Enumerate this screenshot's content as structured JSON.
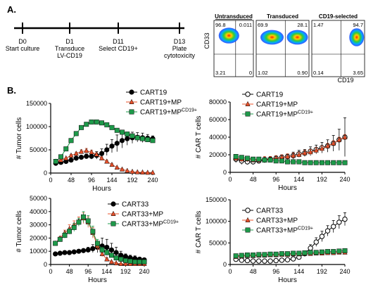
{
  "panel_a": {
    "label": "A.",
    "timeline": [
      {
        "day": "D0",
        "desc": [
          "Start culture"
        ]
      },
      {
        "day": "D1",
        "desc": [
          "Transduce",
          "LV-CD19"
        ]
      },
      {
        "day": "D11",
        "desc": [
          "Select CD19+"
        ]
      },
      {
        "day": "D13",
        "desc": [
          "Plate",
          "cytotoxicity"
        ]
      }
    ],
    "flow": {
      "ylabel": "CD33",
      "xlabel": "CD19",
      "plots": [
        {
          "title": "Untransduced",
          "q": [
            "96.8",
            "0.011",
            "3.21",
            "0"
          ]
        },
        {
          "title": "Transduced",
          "q": [
            "69.9",
            "28.1",
            "1.02",
            "0.90"
          ]
        },
        {
          "title": "CD19-selected",
          "q": [
            "1.47",
            "94.7",
            "0.14",
            "3.65"
          ]
        }
      ]
    }
  },
  "panel_b": {
    "label": "B."
  },
  "colors": {
    "black": "#000000",
    "red": "#e8502a",
    "green": "#1e9a4a",
    "grey": "#888888"
  },
  "chart_data": [
    {
      "type": "line",
      "ylabel": "# Tumor cells",
      "xlabel": "Hours",
      "ylim": [
        0,
        150000
      ],
      "yticks": [
        "0",
        "50000",
        "100000",
        "150000"
      ],
      "xlim": [
        0,
        240
      ],
      "xticks": [
        "0",
        "48",
        "96",
        "144",
        "192",
        "240"
      ],
      "x": [
        12,
        24,
        36,
        48,
        60,
        72,
        84,
        96,
        108,
        120,
        132,
        144,
        156,
        168,
        180,
        192,
        204,
        216,
        228,
        240
      ],
      "series": [
        {
          "name": "CART19",
          "marker": "circle-filled",
          "color": "#000000",
          "values": [
            21000,
            23000,
            25000,
            28000,
            32000,
            34000,
            36000,
            36000,
            38000,
            42000,
            50000,
            58000,
            64000,
            70000,
            74000,
            76000,
            77000,
            76000,
            75000,
            74000
          ],
          "err": [
            0,
            0,
            0,
            2000,
            3000,
            4000,
            5000,
            6000,
            8000,
            10000,
            12000,
            14000,
            18000,
            16000,
            14000,
            12000,
            10000,
            10000,
            8000,
            6000
          ]
        },
        {
          "name": "CART19+MP",
          "marker": "triangle-filled",
          "color": "#e8502a",
          "values": [
            25000,
            28000,
            32000,
            38000,
            42000,
            46000,
            48000,
            45000,
            40000,
            32000,
            25000,
            18000,
            12000,
            8000,
            5000,
            3000,
            2000,
            1500,
            1000,
            1000
          ],
          "err": [
            0,
            0,
            0,
            2000,
            3000,
            4000,
            5000,
            4000,
            4000,
            3000,
            2000,
            2000,
            1000,
            1000,
            0,
            0,
            0,
            0,
            0,
            0
          ]
        },
        {
          "name": "CART19+MP",
          "sup": "CD19+",
          "marker": "square-filled",
          "color": "#1e9a4a",
          "values": [
            25000,
            35000,
            52000,
            70000,
            85000,
            98000,
            105000,
            110000,
            110000,
            108000,
            104000,
            98000,
            92000,
            88000,
            84000,
            80000,
            76000,
            74000,
            72000,
            70000
          ],
          "err": [
            0,
            0,
            0,
            2000,
            2000,
            2000,
            3000,
            3000,
            3000,
            3000,
            3000,
            3000,
            3000,
            3000,
            3000,
            3000,
            3000,
            3000,
            3000,
            3000
          ]
        }
      ]
    },
    {
      "type": "line",
      "ylabel": "# CAR T cells",
      "xlabel": "Hours",
      "ylim": [
        0,
        80000
      ],
      "yticks": [
        "0",
        "20000",
        "40000",
        "60000",
        "80000"
      ],
      "xlim": [
        0,
        240
      ],
      "xticks": [
        "0",
        "48",
        "96",
        "144",
        "192",
        "240"
      ],
      "x": [
        12,
        24,
        36,
        48,
        60,
        72,
        84,
        96,
        108,
        120,
        132,
        144,
        156,
        168,
        180,
        192,
        204,
        216,
        228,
        240
      ],
      "series": [
        {
          "name": "CART19",
          "marker": "circle-open",
          "color": "#000000",
          "values": [
            15000,
            13000,
            12000,
            12000,
            13000,
            14000,
            15000,
            16000,
            17000,
            18000,
            19000,
            21000,
            22000,
            24000,
            26000,
            28000,
            30000,
            33000,
            37000,
            40000
          ],
          "err": [
            4000,
            4000,
            3000,
            3000,
            3000,
            3000,
            3000,
            3000,
            3000,
            3000,
            4000,
            4000,
            4000,
            5000,
            5000,
            6000,
            7000,
            9000,
            12000,
            22000
          ]
        },
        {
          "name": "CART19+MP",
          "marker": "triangle-filled",
          "color": "#e8502a",
          "values": [
            16000,
            15000,
            15000,
            14000,
            14000,
            15000,
            15000,
            16000,
            17000,
            18000,
            19000,
            20000,
            22000,
            23000,
            25000,
            27000,
            30000,
            33000,
            37000,
            40000
          ],
          "err": [
            3000,
            3000,
            3000,
            3000,
            3000,
            3000,
            3000,
            3000,
            3000,
            3000,
            3000,
            3000,
            3000,
            3000,
            3000,
            3000,
            3000,
            3000,
            3000,
            3000
          ]
        },
        {
          "name": "CART19+MP",
          "sup": "CD19+",
          "marker": "square-filled",
          "color": "#1e9a4a",
          "values": [
            18000,
            17000,
            16000,
            15000,
            15000,
            14000,
            14000,
            13000,
            13000,
            12000,
            12000,
            12000,
            11000,
            11000,
            11000,
            11000,
            11000,
            11000,
            11000,
            11000
          ],
          "err": [
            2000,
            2000,
            2000,
            2000,
            1000,
            1000,
            1000,
            1000,
            1000,
            1000,
            1000,
            1000,
            1000,
            1000,
            1000,
            1000,
            1000,
            1000,
            1000,
            1000
          ]
        }
      ]
    },
    {
      "type": "line",
      "ylabel": "# Tumor cells",
      "xlabel": "Hours",
      "ylim": [
        0,
        50000
      ],
      "yticks": [
        "0",
        "10000",
        "20000",
        "30000",
        "40000",
        "50000"
      ],
      "xlim": [
        0,
        240
      ],
      "xticks": [
        "0",
        "48",
        "96",
        "144",
        "192",
        "240"
      ],
      "x": [
        12,
        24,
        36,
        48,
        60,
        72,
        84,
        96,
        108,
        120,
        132,
        144,
        156,
        168,
        180,
        192,
        204,
        216,
        228,
        240
      ],
      "series": [
        {
          "name": "CART33",
          "marker": "circle-filled",
          "color": "#000000",
          "values": [
            8000,
            8500,
            9000,
            9000,
            9500,
            10000,
            10500,
            11000,
            12000,
            13000,
            14000,
            13000,
            11000,
            9000,
            7000,
            6000,
            5000,
            4500,
            4000,
            3500
          ],
          "err": [
            1000,
            1000,
            1000,
            1000,
            1000,
            1000,
            1000,
            2000,
            3000,
            4000,
            6000,
            6000,
            5000,
            4000,
            3000,
            2000,
            2000,
            2000,
            1000,
            1000
          ]
        },
        {
          "name": "CART33+MP",
          "marker": "triangle-filled",
          "color": "#e8502a",
          "values": [
            16000,
            20000,
            24000,
            27000,
            30000,
            33000,
            35000,
            32000,
            24000,
            14000,
            8000,
            4000,
            2000,
            1000,
            500,
            500,
            500,
            500,
            500,
            500
          ],
          "err": [
            1000,
            1000,
            2000,
            3000,
            3000,
            3000,
            4000,
            4000,
            4000,
            3000,
            2000,
            1000,
            500,
            500,
            0,
            0,
            0,
            0,
            0,
            0
          ]
        },
        {
          "name": "CART33+MP",
          "sup": "CD19+",
          "marker": "square-filled",
          "color": "#1e9a4a",
          "values": [
            16000,
            19000,
            22000,
            25000,
            28000,
            32000,
            36000,
            33000,
            25000,
            16000,
            11000,
            9000,
            7000,
            5000,
            4000,
            3000,
            2500,
            2000,
            2000,
            2000
          ],
          "err": [
            1000,
            1000,
            2000,
            2000,
            3000,
            3000,
            4000,
            4000,
            4000,
            3000,
            2000,
            2000,
            1000,
            1000,
            1000,
            1000,
            500,
            500,
            500,
            500
          ]
        }
      ]
    },
    {
      "type": "line",
      "ylabel": "# CAR T cells",
      "xlabel": "Hours",
      "ylim": [
        0,
        150000
      ],
      "yticks": [
        "0",
        "50000",
        "100000",
        "150000"
      ],
      "xlim": [
        0,
        240
      ],
      "xticks": [
        "0",
        "48",
        "96",
        "144",
        "192",
        "240"
      ],
      "x": [
        12,
        24,
        36,
        48,
        60,
        72,
        84,
        96,
        108,
        120,
        132,
        144,
        156,
        168,
        180,
        192,
        204,
        216,
        228,
        240
      ],
      "series": [
        {
          "name": "CART33",
          "marker": "circle-open",
          "color": "#000000",
          "values": [
            12000,
            10000,
            9000,
            8000,
            8000,
            8000,
            8000,
            9000,
            10000,
            11000,
            13000,
            17000,
            25000,
            38000,
            52000,
            65000,
            78000,
            88000,
            98000,
            105000
          ],
          "err": [
            2000,
            2000,
            2000,
            2000,
            2000,
            2000,
            2000,
            2000,
            2000,
            3000,
            3000,
            4000,
            6000,
            8000,
            10000,
            12000,
            12000,
            14000,
            15000,
            15000
          ]
        },
        {
          "name": "CART33+MP",
          "marker": "triangle-filled",
          "color": "#e8502a",
          "values": [
            18000,
            19000,
            20000,
            20000,
            21000,
            21000,
            22000,
            22000,
            23000,
            23000,
            24000,
            24000,
            25000,
            25000,
            26000,
            26000,
            27000,
            27000,
            28000,
            28000
          ],
          "err": [
            3000,
            3000,
            3000,
            3000,
            3000,
            3000,
            3000,
            3000,
            3000,
            3000,
            3000,
            3000,
            3000,
            3000,
            3000,
            3000,
            3000,
            3000,
            3000,
            3000
          ]
        },
        {
          "name": "CART33+MP",
          "sup": "CD19+",
          "marker": "square-filled",
          "color": "#1e9a4a",
          "values": [
            20000,
            21000,
            22000,
            22000,
            23000,
            23000,
            24000,
            24000,
            25000,
            25000,
            26000,
            26000,
            27000,
            28000,
            28000,
            29000,
            30000,
            30000,
            31000,
            32000
          ],
          "err": [
            2000,
            2000,
            2000,
            2000,
            2000,
            2000,
            2000,
            2000,
            2000,
            2000,
            2000,
            2000,
            2000,
            2000,
            2000,
            2000,
            2000,
            2000,
            2000,
            2000
          ]
        }
      ]
    }
  ]
}
